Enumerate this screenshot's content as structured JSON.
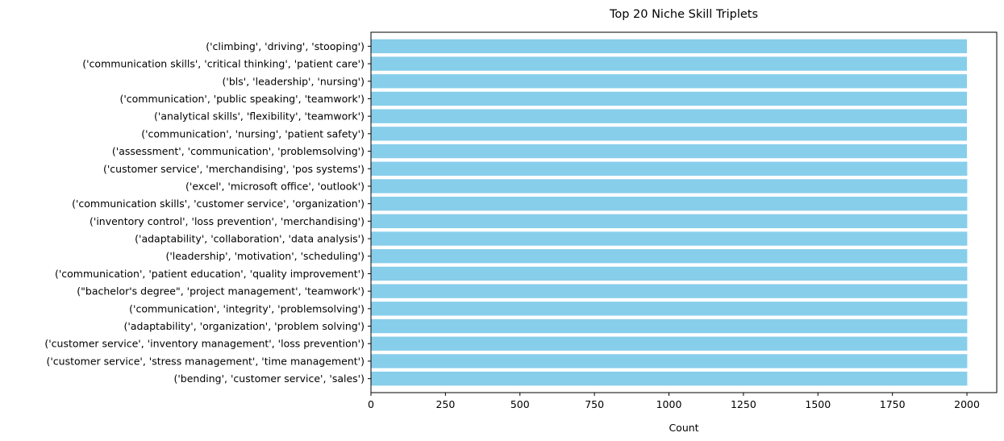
{
  "chart_data": {
    "type": "bar",
    "orientation": "horizontal",
    "title": "Top 20 Niche Skill Triplets",
    "xlabel": "Count",
    "ylabel": "",
    "xlim": [
      0,
      2100
    ],
    "xticks": [
      0,
      250,
      500,
      750,
      1000,
      1250,
      1500,
      1750,
      2000
    ],
    "grid": false,
    "bar_color": "#87ceeb",
    "categories": [
      "('climbing', 'driving', 'stooping')",
      "('communication skills', 'critical thinking', 'patient care')",
      "('bls', 'leadership', 'nursing')",
      "('communication', 'public speaking', 'teamwork')",
      "('analytical skills', 'flexibility', 'teamwork')",
      "('communication', 'nursing', 'patient safety')",
      "('assessment', 'communication', 'problemsolving')",
      "('customer service', 'merchandising', 'pos systems')",
      "('excel', 'microsoft office', 'outlook')",
      "('communication skills', 'customer service', 'organization')",
      "('inventory control', 'loss prevention', 'merchandising')",
      "('adaptability', 'collaboration', 'data analysis')",
      "('leadership', 'motivation', 'scheduling')",
      "('communication', 'patient education', 'quality improvement')",
      "(\"bachelor's degree\", 'project management', 'teamwork')",
      "('communication', 'integrity', 'problemsolving')",
      "('adaptability', 'organization', 'problem solving')",
      "('customer service', 'inventory management', 'loss prevention')",
      "('customer service', 'stress management', 'time management')",
      "('bending', 'customer service', 'sales')"
    ],
    "values": [
      2000,
      2000,
      2000,
      2000,
      2000,
      2000,
      2000,
      2001,
      2001,
      2001,
      2001,
      2001,
      2001,
      2001,
      2001,
      2001,
      2001,
      2001,
      2001,
      2001
    ]
  }
}
